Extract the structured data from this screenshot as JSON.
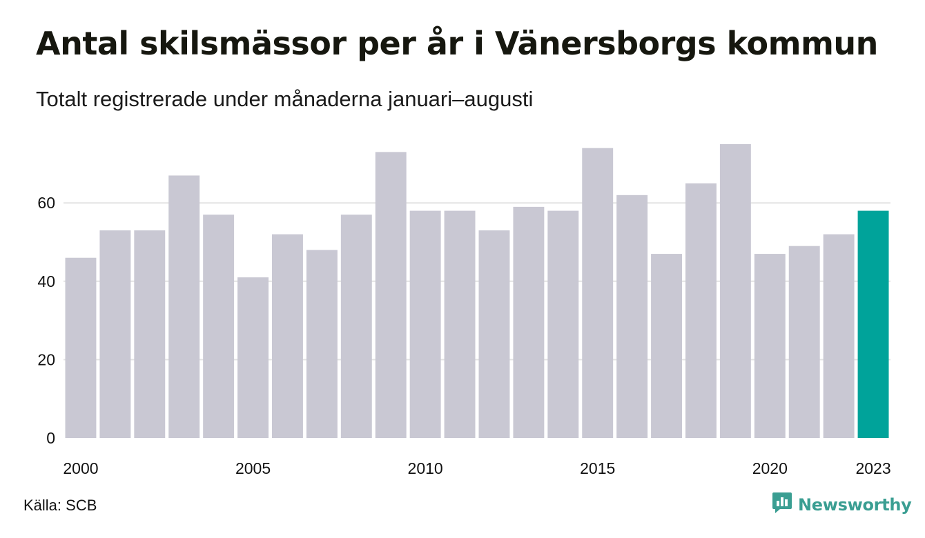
{
  "header": {
    "title": "Antal skilsmässor per år i Vänersborgs kommun",
    "subtitle": "Totalt registrerade under månaderna januari–augusti"
  },
  "footer": {
    "source": "Källa: SCB",
    "brand": "Newsworthy"
  },
  "colors": {
    "bar": "#c9c8d3",
    "highlight": "#00a39a",
    "grid": "#e3e3e3",
    "brand": "#3a9e92"
  },
  "chart_data": {
    "type": "bar",
    "categories": [
      "2000",
      "2001",
      "2002",
      "2003",
      "2004",
      "2005",
      "2006",
      "2007",
      "2008",
      "2009",
      "2010",
      "2011",
      "2012",
      "2013",
      "2014",
      "2015",
      "2016",
      "2017",
      "2018",
      "2019",
      "2020",
      "2021",
      "2022",
      "2023"
    ],
    "values": [
      46,
      53,
      53,
      67,
      57,
      41,
      52,
      48,
      57,
      73,
      58,
      58,
      53,
      59,
      58,
      74,
      62,
      47,
      65,
      75,
      47,
      49,
      52,
      58
    ],
    "highlight": "2023",
    "x_tick_labels": [
      "2000",
      "2005",
      "2010",
      "2015",
      "2020",
      "2023"
    ],
    "y_ticks": [
      0,
      20,
      40,
      60
    ],
    "ylim": [
      0,
      75
    ],
    "grid": true,
    "legend": "none"
  }
}
